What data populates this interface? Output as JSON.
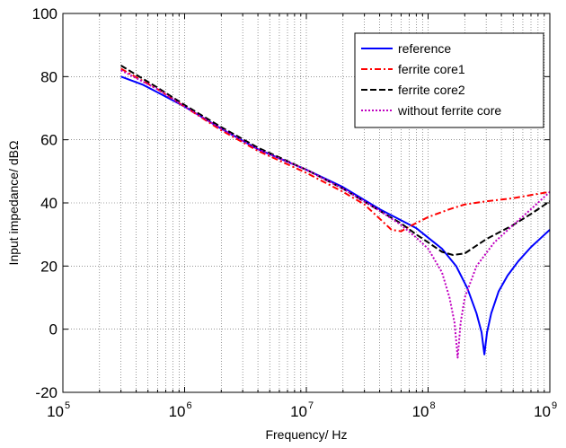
{
  "chart_data": {
    "type": "line",
    "title": "",
    "xlabel": "Frequency/ Hz",
    "ylabel": "Input impedance/ dBΩ",
    "xscale": "log",
    "xlim": [
      100000,
      1000000000
    ],
    "ylim": [
      -20,
      100
    ],
    "x_ticks": [
      {
        "base": "10",
        "exp": "5"
      },
      {
        "base": "10",
        "exp": "6"
      },
      {
        "base": "10",
        "exp": "7"
      },
      {
        "base": "10",
        "exp": "8"
      },
      {
        "base": "10",
        "exp": "9"
      }
    ],
    "y_ticks": [
      "-20",
      "0",
      "20",
      "40",
      "60",
      "80",
      "100"
    ],
    "grid": true,
    "legend_position": "top-right",
    "series": [
      {
        "name": "reference",
        "color": "#0000ff",
        "dash": "solid",
        "points": [
          [
            300000,
            80
          ],
          [
            450000,
            77.5
          ],
          [
            600000,
            75
          ],
          [
            1000000,
            70.5
          ],
          [
            2000000,
            63.5
          ],
          [
            4000000,
            57
          ],
          [
            10000000,
            50.5
          ],
          [
            20000000,
            45
          ],
          [
            40000000,
            38
          ],
          [
            60000000,
            34.5
          ],
          [
            80000000,
            32
          ],
          [
            100000000,
            29
          ],
          [
            130000000,
            25.5
          ],
          [
            170000000,
            20
          ],
          [
            210000000,
            13
          ],
          [
            250000000,
            5
          ],
          [
            275000000,
            -1
          ],
          [
            290000000,
            -8
          ],
          [
            305000000,
            -1
          ],
          [
            330000000,
            5
          ],
          [
            380000000,
            12
          ],
          [
            450000000,
            17
          ],
          [
            550000000,
            21.5
          ],
          [
            700000000,
            26
          ],
          [
            850000000,
            29
          ],
          [
            1000000000,
            31.5
          ]
        ]
      },
      {
        "name": "ferrite core1",
        "color": "#ff0000",
        "dash": "dashdot",
        "points": [
          [
            300000,
            82.5
          ],
          [
            600000,
            76
          ],
          [
            1000000,
            70.5
          ],
          [
            2000000,
            63
          ],
          [
            4000000,
            56.5
          ],
          [
            10000000,
            49.5
          ],
          [
            20000000,
            43.5
          ],
          [
            30000000,
            39.5
          ],
          [
            40000000,
            35
          ],
          [
            50000000,
            31.5
          ],
          [
            60000000,
            31
          ],
          [
            70000000,
            32.5
          ],
          [
            100000000,
            35.5
          ],
          [
            150000000,
            38
          ],
          [
            200000000,
            39.5
          ],
          [
            300000000,
            40.5
          ],
          [
            500000000,
            41.5
          ],
          [
            700000000,
            42.5
          ],
          [
            1000000000,
            43.5
          ]
        ]
      },
      {
        "name": "ferrite core2",
        "color": "#000000",
        "dash": "dashed",
        "points": [
          [
            300000,
            83.5
          ],
          [
            600000,
            76.5
          ],
          [
            1000000,
            71
          ],
          [
            2000000,
            64
          ],
          [
            4000000,
            57.5
          ],
          [
            10000000,
            50.5
          ],
          [
            20000000,
            44.5
          ],
          [
            40000000,
            37.5
          ],
          [
            60000000,
            33.5
          ],
          [
            80000000,
            30
          ],
          [
            100000000,
            27.5
          ],
          [
            130000000,
            24.5
          ],
          [
            160000000,
            23.5
          ],
          [
            200000000,
            24
          ],
          [
            300000000,
            28.5
          ],
          [
            500000000,
            33
          ],
          [
            700000000,
            36.5
          ],
          [
            1000000000,
            40.5
          ]
        ]
      },
      {
        "name": "without ferrite core",
        "color": "#c000c0",
        "dash": "dotted",
        "points": [
          [
            300000,
            82
          ],
          [
            600000,
            76
          ],
          [
            1000000,
            70.5
          ],
          [
            2000000,
            63.5
          ],
          [
            4000000,
            57
          ],
          [
            10000000,
            50.5
          ],
          [
            20000000,
            44.5
          ],
          [
            40000000,
            37.5
          ],
          [
            60000000,
            33
          ],
          [
            80000000,
            29
          ],
          [
            100000000,
            25.5
          ],
          [
            130000000,
            18
          ],
          [
            150000000,
            10
          ],
          [
            165000000,
            2
          ],
          [
            175000000,
            -9
          ],
          [
            185000000,
            2
          ],
          [
            200000000,
            10
          ],
          [
            250000000,
            20
          ],
          [
            350000000,
            27.5
          ],
          [
            500000000,
            33
          ],
          [
            700000000,
            38
          ],
          [
            1000000000,
            43.5
          ]
        ]
      }
    ]
  }
}
